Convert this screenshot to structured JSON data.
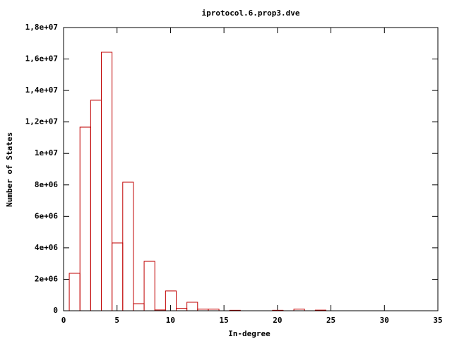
{
  "chart_data": {
    "type": "boxes",
    "title": "iprotocol.6.prop3.dve",
    "x_label": "In-degree",
    "y_label": "Number of States",
    "x": [
      1,
      2,
      3,
      4,
      5,
      6,
      7,
      8,
      9,
      10,
      11,
      12,
      13,
      14,
      16,
      20,
      22,
      24
    ],
    "values": [
      2380000,
      11670000,
      13380000,
      16430000,
      4310000,
      8170000,
      450000,
      3140000,
      50000,
      1260000,
      150000,
      540000,
      100000,
      100000,
      30000,
      30000,
      100000,
      40000
    ],
    "color": "#c00000",
    "xlim": [
      0,
      35
    ],
    "xticks": [
      0,
      5,
      10,
      15,
      20,
      25,
      30,
      35
    ],
    "ylim": [
      0,
      18000000
    ],
    "yticks": [
      0,
      {
        "value": 2000000,
        "label": "2e+06"
      },
      {
        "value": 4000000,
        "label": "4e+06"
      },
      {
        "value": 6000000,
        "label": "6e+06"
      },
      {
        "value": 8000000,
        "label": "8e+06"
      },
      {
        "value": 10000000,
        "label": "1e+07"
      },
      {
        "value": 12000000,
        "label": "1,2e+07"
      },
      {
        "value": 14000000,
        "label": "1,4e+07"
      },
      {
        "value": 16000000,
        "label": "1,6e+07"
      },
      {
        "value": 18000000,
        "label": "1,8e+07"
      }
    ]
  }
}
